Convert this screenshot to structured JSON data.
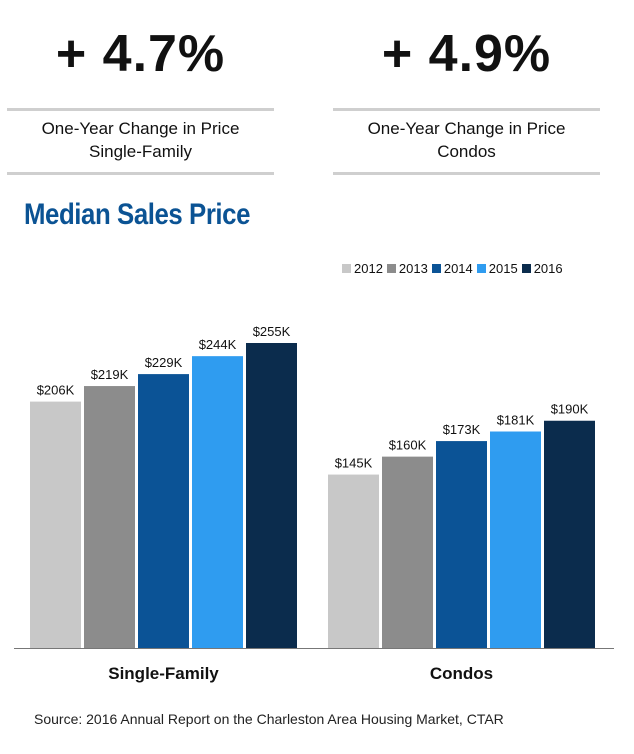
{
  "kpis": [
    {
      "value": "+ 4.7%",
      "line1": "One-Year Change in Price",
      "line2": "Single-Family"
    },
    {
      "value": "+ 4.9%",
      "line1": "One-Year Change in Price",
      "line2": "Condos"
    }
  ],
  "colors": {
    "2012": "#c8c8c8",
    "2013": "#8c8c8c",
    "2014": "#0b5396",
    "2015": "#2f9cf0",
    "2016": "#0b2c4d",
    "title": "#0b5394"
  },
  "source": "Source: 2016 Annual Report on the Charleston Area Housing Market, CTAR",
  "chart_data": {
    "type": "bar",
    "title": "Median Sales Price",
    "categories": [
      "Single-Family",
      "Condos"
    ],
    "series": [
      {
        "name": "2012",
        "values": [
          206,
          145
        ],
        "labels": [
          "$206K",
          "$145K"
        ]
      },
      {
        "name": "2013",
        "values": [
          219,
          160
        ],
        "labels": [
          "$219K",
          "$160K"
        ]
      },
      {
        "name": "2014",
        "values": [
          229,
          173
        ],
        "labels": [
          "$229K",
          "$173K"
        ]
      },
      {
        "name": "2015",
        "values": [
          244,
          181
        ],
        "labels": [
          "$244K",
          "$181K"
        ]
      },
      {
        "name": "2016",
        "values": [
          255,
          190
        ],
        "labels": [
          "$255K",
          "$190K"
        ]
      }
    ],
    "unit": "$K",
    "ylim": [
      0,
      255
    ],
    "legend_position": "top-right",
    "grid": false
  }
}
